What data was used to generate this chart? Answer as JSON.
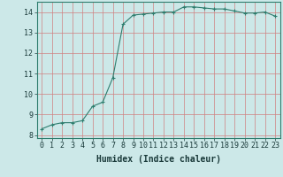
{
  "x": [
    0,
    1,
    2,
    3,
    4,
    5,
    6,
    7,
    8,
    9,
    10,
    11,
    12,
    13,
    14,
    15,
    16,
    17,
    18,
    19,
    20,
    21,
    22,
    23
  ],
  "y": [
    8.3,
    8.5,
    8.6,
    8.6,
    8.7,
    9.4,
    9.6,
    10.8,
    13.4,
    13.85,
    13.9,
    13.95,
    14.0,
    14.0,
    14.25,
    14.25,
    14.2,
    14.15,
    14.15,
    14.05,
    13.95,
    13.95,
    14.0,
    13.8
  ],
  "line_color": "#2e7d6e",
  "marker": "+",
  "marker_color": "#2e7d6e",
  "bg_color": "#cce8e8",
  "grid_color_major": "#d08080",
  "grid_color_minor": "#d08080",
  "xlabel": "Humidex (Indice chaleur)",
  "xlabel_fontsize": 7,
  "tick_fontsize": 6,
  "xlim": [
    -0.5,
    23.5
  ],
  "ylim": [
    7.85,
    14.5
  ],
  "yticks": [
    8,
    9,
    10,
    11,
    12,
    13,
    14
  ],
  "xticks": [
    0,
    1,
    2,
    3,
    4,
    5,
    6,
    7,
    8,
    9,
    10,
    11,
    12,
    13,
    14,
    15,
    16,
    17,
    18,
    19,
    20,
    21,
    22,
    23
  ]
}
